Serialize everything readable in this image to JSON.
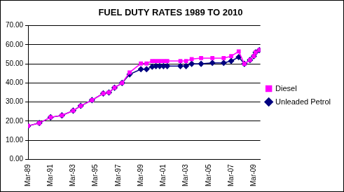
{
  "chart_data": {
    "type": "line",
    "title": "FUEL DUTY RATES 1989 TO 2010",
    "x": [
      1989.167,
      1990.167,
      1991.167,
      1992.167,
      1993.167,
      1993.833,
      1994.833,
      1995.833,
      1996.333,
      1996.833,
      1997.5,
      1998.167,
      1999.167,
      1999.667,
      2000.167,
      2000.5,
      2000.833,
      2001.167,
      2001.5,
      2002.667,
      2003.167,
      2003.667,
      2004.5,
      2005.5,
      2006.5,
      2007.167,
      2007.833,
      2008.333,
      2008.833,
      2009.167,
      2009.333,
      2009.667
    ],
    "series": [
      {
        "name": "Unleaded Petrol",
        "color": "#000080",
        "marker": "diamond",
        "values": [
          17.5,
          19,
          22,
          23,
          25.5,
          28,
          31,
          34.5,
          35,
          37.5,
          40,
          44.5,
          47.2,
          47.2,
          48.5,
          48.8,
          48.8,
          48.8,
          48.8,
          48.8,
          48.8,
          50,
          50,
          50.5,
          50.5,
          51.5,
          53.5,
          50,
          52,
          54,
          56,
          57.2
        ]
      },
      {
        "name": "Diesel",
        "color": "#ff00ff",
        "marker": "square",
        "values": [
          17.5,
          19,
          22,
          23,
          25.5,
          28,
          31,
          34.5,
          35,
          37.5,
          40,
          45.5,
          50.2,
          50.2,
          51.5,
          51.5,
          51.5,
          51.5,
          51.5,
          51.5,
          51.5,
          52.5,
          53,
          53,
          53,
          54,
          56.5,
          50,
          52,
          54,
          56,
          57.2
        ]
      }
    ],
    "xlim": [
      1989.167,
      2009.75
    ],
    "xticks": [
      {
        "value": 1989.167,
        "label": "Mar-89"
      },
      {
        "value": 1991.167,
        "label": "Mar-91"
      },
      {
        "value": 1993.167,
        "label": "Mar-93"
      },
      {
        "value": 1995.167,
        "label": "Mar-95"
      },
      {
        "value": 1997.167,
        "label": "Mar-97"
      },
      {
        "value": 1999.167,
        "label": "Mar-99"
      },
      {
        "value": 2001.167,
        "label": "Mar-01"
      },
      {
        "value": 2003.167,
        "label": "Mar-03"
      },
      {
        "value": 2005.167,
        "label": "Mar-05"
      },
      {
        "value": 2007.167,
        "label": "Mar-07"
      },
      {
        "value": 2009.167,
        "label": "Mar-09"
      }
    ],
    "ylim": [
      0,
      70
    ],
    "yticks": [
      {
        "value": 0,
        "label": "0.00"
      },
      {
        "value": 10,
        "label": "10.00"
      },
      {
        "value": 20,
        "label": "20.00"
      },
      {
        "value": 30,
        "label": "30.00"
      },
      {
        "value": 40,
        "label": "40.00"
      },
      {
        "value": 50,
        "label": "50.00"
      },
      {
        "value": 60,
        "label": "60.00"
      },
      {
        "value": 70,
        "label": "70.00"
      }
    ],
    "grid": "y",
    "legend": "right"
  }
}
